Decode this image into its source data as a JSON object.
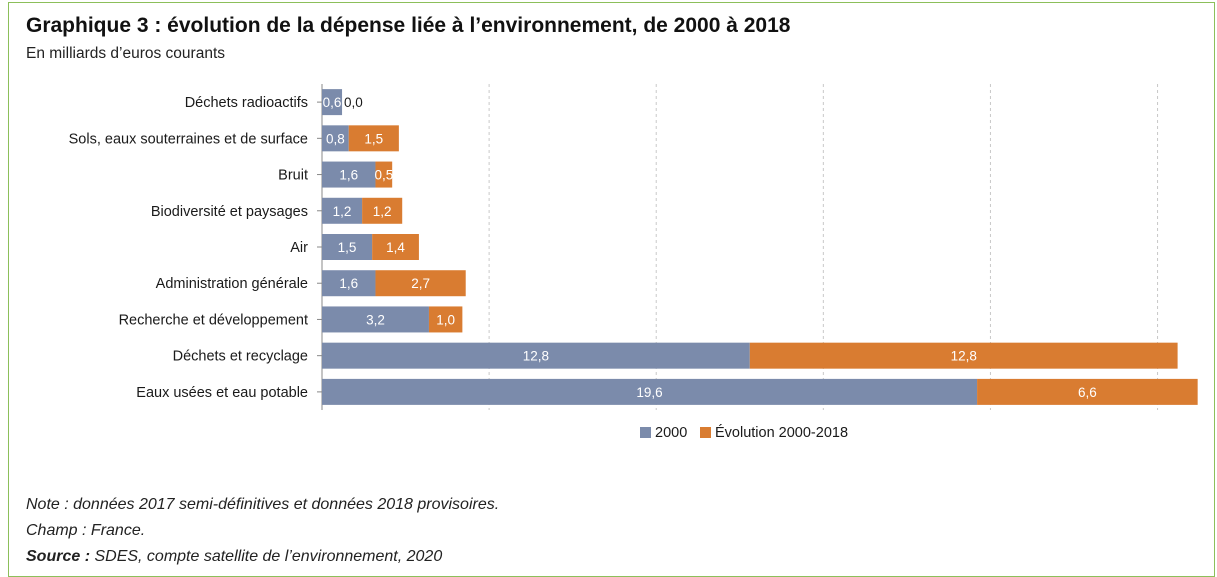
{
  "chart_data": {
    "type": "bar",
    "orientation": "horizontal",
    "stacked": true,
    "title": "Graphique 3 : évolution de la dépense liée à l’environnement, de 2000 à 2018",
    "subtitle": "En milliards d’euros courants",
    "categories": [
      "Déchets radioactifs",
      "Sols, eaux souterraines et de surface",
      "Bruit",
      "Biodiversité et paysages",
      "Air",
      "Administration générale",
      "Recherche et développement",
      "Déchets et recyclage",
      "Eaux usées et eau potable"
    ],
    "series": [
      {
        "name": "2000",
        "color": "#7b8bab",
        "values": [
          0.6,
          0.8,
          1.6,
          1.2,
          1.5,
          1.6,
          3.2,
          12.8,
          19.6
        ],
        "labels": [
          "0,6",
          "0,8",
          "1,6",
          "1,2",
          "1,5",
          "1,6",
          "3,2",
          "12,8",
          "19,6"
        ]
      },
      {
        "name": "Évolution 2000-2018",
        "color": "#d97c31",
        "values": [
          0.0,
          1.5,
          0.5,
          1.2,
          1.4,
          2.7,
          1.0,
          12.8,
          6.6
        ],
        "labels": [
          "0,0",
          "1,5",
          "0,5",
          "1,2",
          "1,4",
          "2,7",
          "1,0",
          "12,8",
          "6,6"
        ]
      }
    ],
    "xlim": [
      0,
      26.3
    ],
    "grid": true,
    "legend": "bottom-center"
  },
  "notes": {
    "note": "Note : données 2017 semi-définitives et données 2018 provisoires.",
    "champ": "Champ : France.",
    "source_label": "Source :",
    "source_text": " SDES, compte satellite de l’environnement, 2020"
  }
}
